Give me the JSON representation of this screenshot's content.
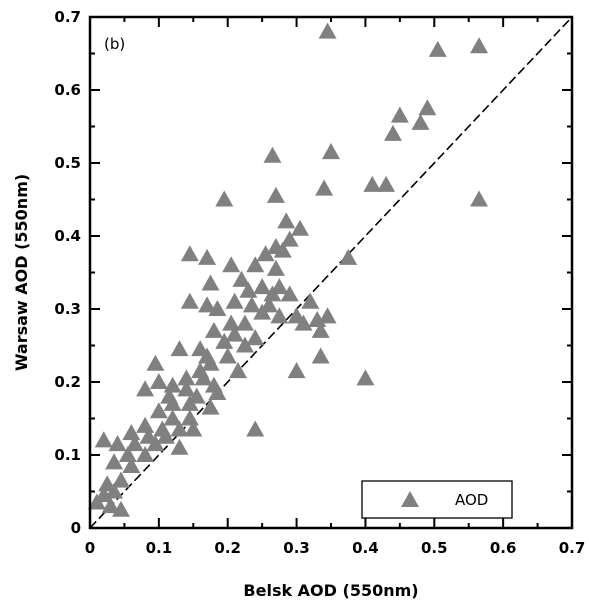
{
  "chart_data": {
    "type": "scatter",
    "panel_label": "(b)",
    "xlabel": "Belsk AOD (550nm)",
    "ylabel": "Warsaw AOD (550nm)",
    "xlim": [
      0,
      0.7
    ],
    "ylim": [
      0,
      0.7
    ],
    "x_ticks": [
      "0",
      "0.1",
      "0.2",
      "0.3",
      "0.4",
      "0.5",
      "0.6",
      "0.7"
    ],
    "y_ticks": [
      "0",
      "0.1",
      "0.2",
      "0.3",
      "0.4",
      "0.5",
      "0.6",
      "0.7"
    ],
    "grid": false,
    "reference_line": "1:1 dashed",
    "legend": {
      "placement": "bottom-right",
      "label": "AOD"
    },
    "colors": {
      "marker": "#808080",
      "axes": "#000000"
    },
    "series": [
      {
        "name": "AOD",
        "marker": "triangle",
        "points": [
          [
            0.345,
            0.68
          ],
          [
            0.565,
            0.66
          ],
          [
            0.505,
            0.655
          ],
          [
            0.49,
            0.575
          ],
          [
            0.45,
            0.565
          ],
          [
            0.48,
            0.555
          ],
          [
            0.44,
            0.54
          ],
          [
            0.265,
            0.51
          ],
          [
            0.35,
            0.515
          ],
          [
            0.34,
            0.465
          ],
          [
            0.41,
            0.47
          ],
          [
            0.43,
            0.47
          ],
          [
            0.565,
            0.45
          ],
          [
            0.195,
            0.45
          ],
          [
            0.27,
            0.455
          ],
          [
            0.285,
            0.42
          ],
          [
            0.305,
            0.41
          ],
          [
            0.29,
            0.395
          ],
          [
            0.27,
            0.385
          ],
          [
            0.375,
            0.37
          ],
          [
            0.145,
            0.375
          ],
          [
            0.17,
            0.37
          ],
          [
            0.205,
            0.36
          ],
          [
            0.255,
            0.375
          ],
          [
            0.28,
            0.38
          ],
          [
            0.24,
            0.36
          ],
          [
            0.27,
            0.355
          ],
          [
            0.22,
            0.34
          ],
          [
            0.175,
            0.335
          ],
          [
            0.23,
            0.325
          ],
          [
            0.25,
            0.33
          ],
          [
            0.275,
            0.33
          ],
          [
            0.265,
            0.32
          ],
          [
            0.29,
            0.32
          ],
          [
            0.145,
            0.31
          ],
          [
            0.17,
            0.305
          ],
          [
            0.185,
            0.3
          ],
          [
            0.21,
            0.31
          ],
          [
            0.235,
            0.305
          ],
          [
            0.26,
            0.305
          ],
          [
            0.32,
            0.31
          ],
          [
            0.3,
            0.29
          ],
          [
            0.33,
            0.285
          ],
          [
            0.345,
            0.29
          ],
          [
            0.335,
            0.27
          ],
          [
            0.31,
            0.28
          ],
          [
            0.275,
            0.29
          ],
          [
            0.25,
            0.295
          ],
          [
            0.225,
            0.28
          ],
          [
            0.205,
            0.28
          ],
          [
            0.18,
            0.27
          ],
          [
            0.21,
            0.265
          ],
          [
            0.24,
            0.26
          ],
          [
            0.195,
            0.255
          ],
          [
            0.225,
            0.25
          ],
          [
            0.16,
            0.245
          ],
          [
            0.13,
            0.245
          ],
          [
            0.17,
            0.235
          ],
          [
            0.2,
            0.235
          ],
          [
            0.095,
            0.225
          ],
          [
            0.16,
            0.215
          ],
          [
            0.175,
            0.225
          ],
          [
            0.215,
            0.215
          ],
          [
            0.3,
            0.215
          ],
          [
            0.335,
            0.235
          ],
          [
            0.4,
            0.205
          ],
          [
            0.1,
            0.2
          ],
          [
            0.12,
            0.195
          ],
          [
            0.14,
            0.205
          ],
          [
            0.165,
            0.205
          ],
          [
            0.18,
            0.195
          ],
          [
            0.14,
            0.19
          ],
          [
            0.08,
            0.19
          ],
          [
            0.115,
            0.18
          ],
          [
            0.155,
            0.18
          ],
          [
            0.185,
            0.185
          ],
          [
            0.12,
            0.17
          ],
          [
            0.145,
            0.17
          ],
          [
            0.175,
            0.165
          ],
          [
            0.1,
            0.16
          ],
          [
            0.12,
            0.15
          ],
          [
            0.145,
            0.15
          ],
          [
            0.08,
            0.14
          ],
          [
            0.105,
            0.135
          ],
          [
            0.13,
            0.135
          ],
          [
            0.15,
            0.135
          ],
          [
            0.24,
            0.135
          ],
          [
            0.06,
            0.13
          ],
          [
            0.085,
            0.125
          ],
          [
            0.11,
            0.125
          ],
          [
            0.02,
            0.12
          ],
          [
            0.04,
            0.115
          ],
          [
            0.065,
            0.115
          ],
          [
            0.095,
            0.115
          ],
          [
            0.13,
            0.11
          ],
          [
            0.055,
            0.1
          ],
          [
            0.08,
            0.1
          ],
          [
            0.035,
            0.09
          ],
          [
            0.06,
            0.085
          ],
          [
            0.025,
            0.06
          ],
          [
            0.045,
            0.065
          ],
          [
            0.02,
            0.045
          ],
          [
            0.035,
            0.05
          ],
          [
            0.01,
            0.035
          ],
          [
            0.03,
            0.03
          ],
          [
            0.045,
            0.025
          ]
        ]
      }
    ]
  }
}
